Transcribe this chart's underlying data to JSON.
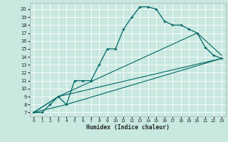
{
  "xlabel": "Humidex (Indice chaleur)",
  "bg_color": "#c8e8e0",
  "grid_color": "#ffffff",
  "line_color": "#006666",
  "xlim": [
    -0.5,
    23.5
  ],
  "ylim": [
    6.5,
    20.8
  ],
  "xticks": [
    0,
    1,
    2,
    3,
    4,
    5,
    6,
    7,
    8,
    9,
    10,
    11,
    12,
    13,
    14,
    15,
    16,
    17,
    18,
    19,
    20,
    21,
    22,
    23
  ],
  "yticks": [
    7,
    8,
    9,
    10,
    11,
    12,
    13,
    14,
    15,
    16,
    17,
    18,
    19,
    20
  ],
  "line1_x": [
    0,
    1,
    2,
    3,
    4,
    5,
    6,
    7,
    8,
    9,
    10,
    11,
    12,
    13,
    14,
    15,
    16,
    17,
    18,
    19,
    20,
    21,
    22,
    23
  ],
  "line1_y": [
    7,
    7,
    8,
    9,
    8,
    11,
    11,
    11,
    13,
    15,
    15,
    17.5,
    19,
    20.3,
    20.3,
    20,
    18.5,
    18,
    18,
    17.5,
    17,
    15.2,
    14.2,
    13.8
  ],
  "line2_x": [
    0,
    3,
    23
  ],
  "line2_y": [
    7,
    9,
    13.8
  ],
  "line3_x": [
    0,
    4,
    23
  ],
  "line3_y": [
    7,
    8,
    13.8
  ],
  "line4_x": [
    0,
    3,
    20,
    23
  ],
  "line4_y": [
    7,
    9,
    17,
    14.2
  ]
}
